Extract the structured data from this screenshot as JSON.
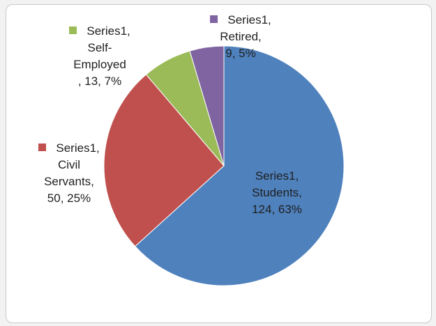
{
  "chart_data": {
    "type": "pie",
    "series": [
      {
        "name": "Series1",
        "slices": [
          {
            "category": "Students",
            "value": 124,
            "percent": "63%",
            "color": "#4f81bd",
            "label_lines": [
              "Series1,",
              "Students,",
              "124, 63%"
            ]
          },
          {
            "category": "Civil Servants",
            "value": 50,
            "percent": "25%",
            "color": "#c0504d",
            "label_lines": [
              "Series1,",
              "Civil",
              "Servants,",
              "50, 25%"
            ]
          },
          {
            "category": "Self-Employed",
            "value": 13,
            "percent": "7%",
            "color": "#9bbb59",
            "label_lines": [
              "Series1,",
              "Self-",
              "Employed",
              ", 13, 7%"
            ]
          },
          {
            "category": "Retired",
            "value": 9,
            "percent": "5%",
            "color": "#8064a2",
            "label_lines": [
              "Series1,",
              "Retired,",
              "9, 5%"
            ]
          }
        ]
      }
    ],
    "start": "top",
    "direction": "clockwise",
    "legend": "none"
  }
}
